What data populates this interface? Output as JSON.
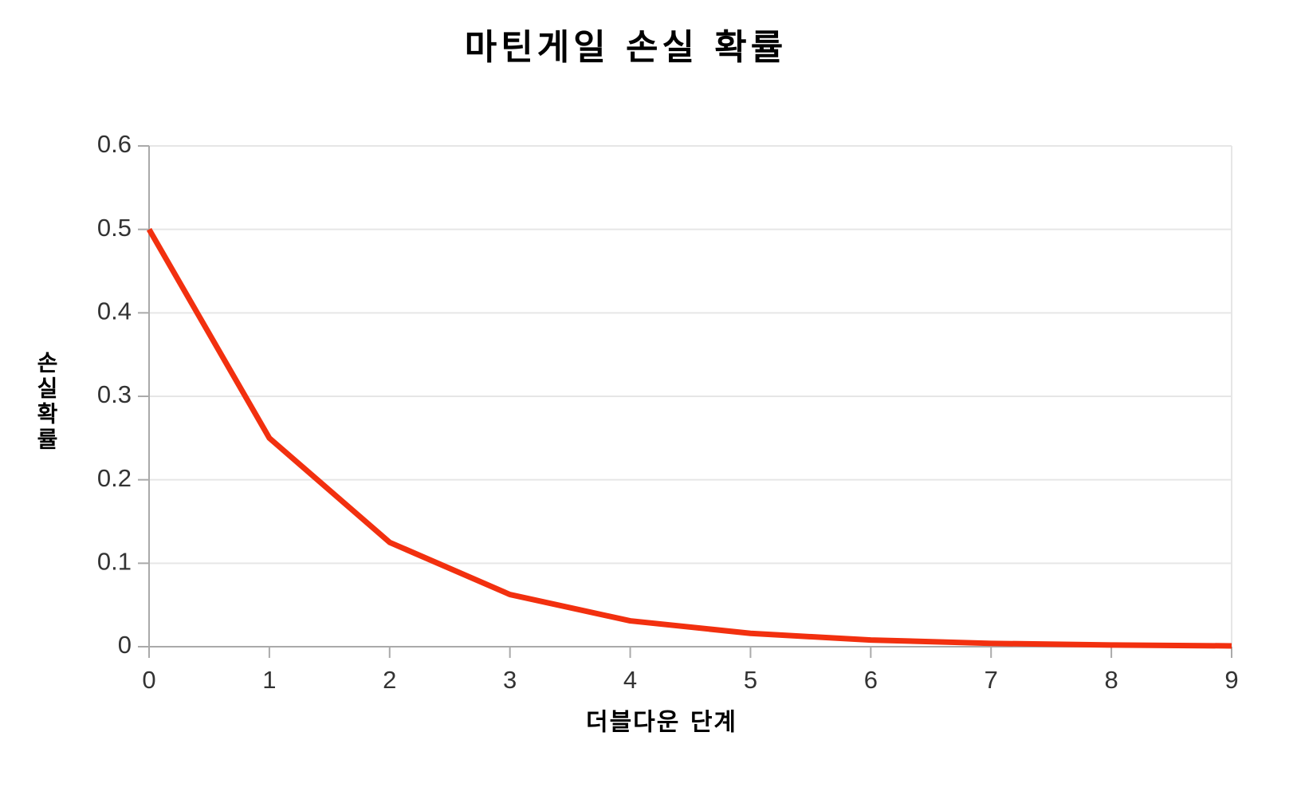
{
  "chart_data": {
    "type": "line",
    "title": "마틴게일 손실 확률",
    "x_label": "더블다운 단계",
    "y_label": "손실확률",
    "x": [
      0,
      1,
      2,
      3,
      4,
      5,
      6,
      7,
      8,
      9
    ],
    "series": [
      {
        "name": "손실확률",
        "color": "#f2300f",
        "values": [
          0.5,
          0.25,
          0.125,
          0.0625,
          0.031,
          0.016,
          0.008,
          0.004,
          0.002,
          0.001
        ]
      }
    ],
    "xlim": [
      0,
      9
    ],
    "xticks": [
      0,
      1,
      2,
      3,
      4,
      5,
      6,
      7,
      8,
      9
    ],
    "ylim": [
      0,
      0.6
    ],
    "yticks": [
      0,
      0.1,
      0.2,
      0.3,
      0.4,
      0.5,
      0.6
    ],
    "grid": true,
    "legend": false
  }
}
